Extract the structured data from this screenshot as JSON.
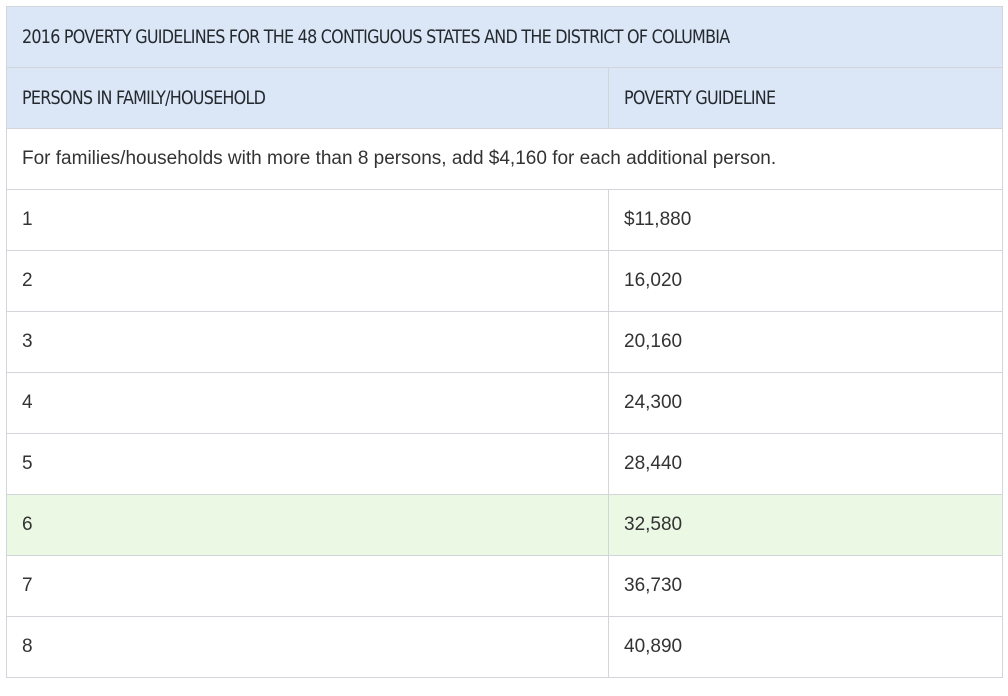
{
  "table": {
    "title": "2016 POVERTY GUIDELINES FOR THE 48 CONTIGUOUS STATES AND THE DISTRICT OF COLUMBIA",
    "headers": [
      "PERSONS IN FAMILY/HOUSEHOLD",
      "POVERTY GUIDELINE"
    ],
    "note": "For families/households with more than 8 persons, add $4,160 for each additional person.",
    "rows": [
      {
        "persons": "1",
        "guideline": "$11,880",
        "highlighted": false
      },
      {
        "persons": "2",
        "guideline": "16,020",
        "highlighted": false
      },
      {
        "persons": "3",
        "guideline": "20,160",
        "highlighted": false
      },
      {
        "persons": "4",
        "guideline": "24,300",
        "highlighted": false
      },
      {
        "persons": "5",
        "guideline": "28,440",
        "highlighted": false
      },
      {
        "persons": "6",
        "guideline": "32,580",
        "highlighted": true
      },
      {
        "persons": "7",
        "guideline": "36,730",
        "highlighted": false
      },
      {
        "persons": "8",
        "guideline": "40,890",
        "highlighted": false
      }
    ],
    "colors": {
      "header_background": "#dbe7f6",
      "highlight_background": "#ebf8e3",
      "border": "#d2d6db"
    }
  }
}
